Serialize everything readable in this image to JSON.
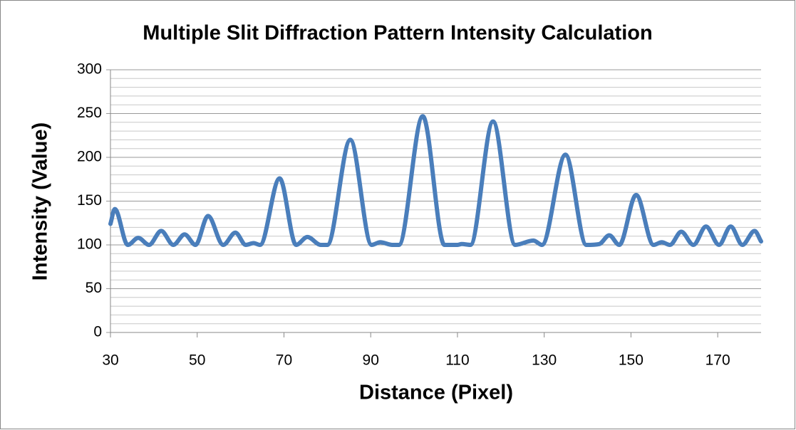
{
  "chart_data": {
    "type": "line",
    "title": "Multiple Slit Diffraction Pattern Intensity Calculation",
    "xlabel": "Distance (Pixel)",
    "ylabel": "Intensity (Value)",
    "x": [
      30,
      31,
      34,
      36.4,
      38.9,
      41.7,
      44.5,
      47.1,
      49.6,
      52.5,
      56,
      58.8,
      61.2,
      63,
      64.5,
      69,
      72.8,
      75.4,
      78.5,
      80,
      85.3,
      90.2,
      92.2,
      95,
      96.5,
      102,
      107,
      110,
      111,
      113,
      118.2,
      123.3,
      127.5,
      129.5,
      134.9,
      139.7,
      142.7,
      145,
      147.3,
      151.2,
      155.2,
      157.1,
      159,
      161.6,
      164.4,
      167.3,
      170.3,
      173,
      175.7,
      178.5,
      180
    ],
    "values": [
      124,
      141,
      100,
      108,
      100,
      116,
      100,
      112,
      100,
      133,
      100,
      114,
      100,
      102,
      100,
      176,
      100,
      109,
      100,
      100,
      220,
      100,
      103,
      100,
      100,
      247,
      100,
      100,
      101,
      100,
      241,
      100,
      105,
      100,
      203,
      100,
      101,
      111,
      100,
      157,
      100,
      103,
      100,
      115,
      100,
      121,
      100,
      121,
      100,
      116,
      104
    ],
    "color": "#4a7ebb",
    "xlim": [
      30,
      180
    ],
    "xticks": [
      30,
      50,
      70,
      90,
      110,
      130,
      150,
      170
    ],
    "ylim": [
      0,
      300
    ],
    "yticks": [
      0,
      50,
      100,
      150,
      200,
      250,
      300
    ],
    "yminorticks": [
      10,
      20,
      30,
      40,
      60,
      70,
      80,
      90,
      110,
      120,
      130,
      140,
      160,
      170,
      180,
      190,
      210,
      220,
      230,
      240,
      260,
      270,
      280,
      290
    ],
    "grid": true
  }
}
